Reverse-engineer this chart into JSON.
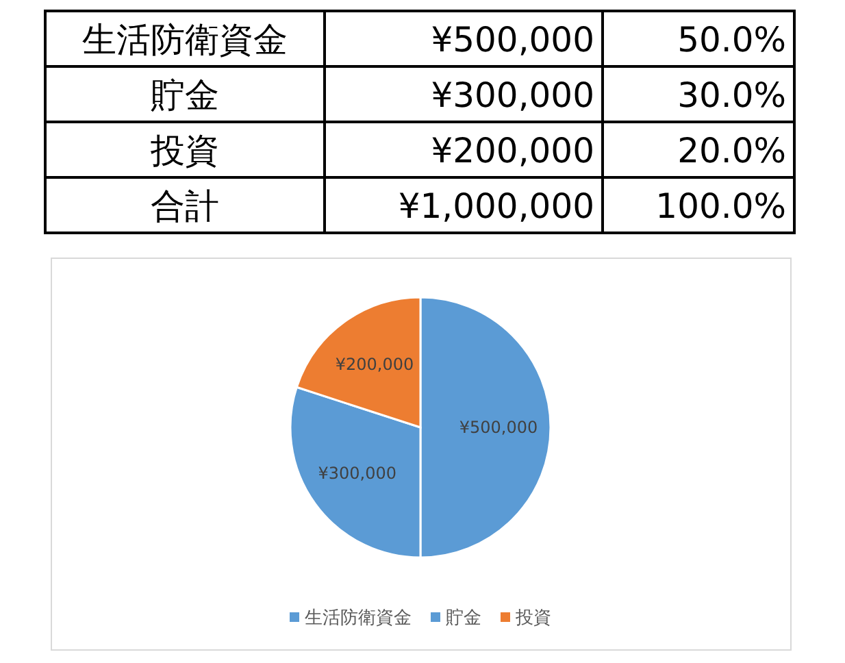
{
  "chart_data": [
    {
      "type": "other",
      "annotations": [
        "生活防衛資金",
        "¥500,000",
        "50.0%",
        "貯金",
        "¥300,000",
        "30.0%",
        "投資",
        "¥200,000",
        "20.0%",
        "合計",
        "¥1,000,000",
        "100.0%"
      ]
    },
    {
      "type": "pie",
      "categories": [
        "生活防衛資金",
        "貯金",
        "投資"
      ],
      "values": [
        500000,
        300000,
        200000
      ],
      "colors": [
        "#5b9bd5",
        "#5b9bd5",
        "#ed7d31"
      ],
      "value_labels": [
        "¥500,000",
        "¥300,000",
        "¥200,000"
      ],
      "legend": "bottom"
    }
  ]
}
